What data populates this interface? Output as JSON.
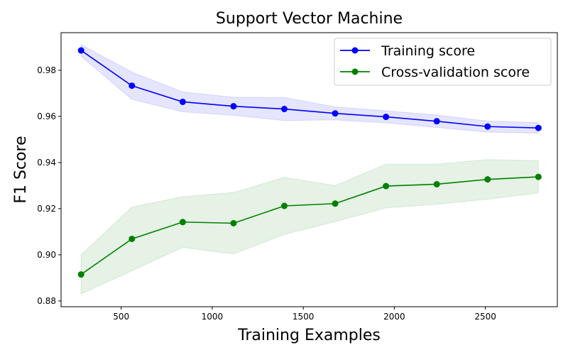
{
  "chart_data": {
    "type": "line",
    "title": "Support Vector Machine",
    "xlabel": "Training Examples",
    "ylabel": "F1 Score",
    "xlim": [
      170,
      2895
    ],
    "ylim": [
      0.8775,
      0.9963
    ],
    "xticks": [
      500,
      1000,
      1500,
      2000,
      2500
    ],
    "xtick_labels": [
      "500",
      "1000",
      "1500",
      "2000",
      "2500"
    ],
    "yticks": [
      0.88,
      0.9,
      0.92,
      0.94,
      0.96,
      0.98
    ],
    "ytick_labels": [
      "0.88",
      "0.90",
      "0.92",
      "0.94",
      "0.96",
      "0.98"
    ],
    "x": [
      280,
      559,
      838,
      1117,
      1396,
      1675,
      1954,
      2233,
      2512,
      2791
    ],
    "grid": false,
    "legend_position": "top-right",
    "series": [
      {
        "name": "Training score",
        "color": "#0000ff",
        "values": [
          0.9886,
          0.9733,
          0.9663,
          0.9644,
          0.9632,
          0.9613,
          0.9598,
          0.9579,
          0.9556,
          0.955
        ],
        "band_upper": [
          0.9911,
          0.9792,
          0.9706,
          0.9683,
          0.9682,
          0.9641,
          0.9624,
          0.9606,
          0.958,
          0.9573
        ],
        "band_lower": [
          0.9861,
          0.9674,
          0.962,
          0.9605,
          0.9582,
          0.9585,
          0.9572,
          0.9552,
          0.9532,
          0.9527
        ]
      },
      {
        "name": "Cross-validation score",
        "color": "#008000",
        "values": [
          0.8915,
          0.9069,
          0.9142,
          0.9137,
          0.9212,
          0.9222,
          0.9298,
          0.9306,
          0.9327,
          0.9338
        ],
        "band_upper": [
          0.9,
          0.9207,
          0.9252,
          0.927,
          0.9336,
          0.93,
          0.9393,
          0.9393,
          0.9413,
          0.9408
        ],
        "band_lower": [
          0.883,
          0.8931,
          0.9032,
          0.9004,
          0.9088,
          0.9144,
          0.9203,
          0.9219,
          0.9241,
          0.9268
        ]
      }
    ]
  }
}
